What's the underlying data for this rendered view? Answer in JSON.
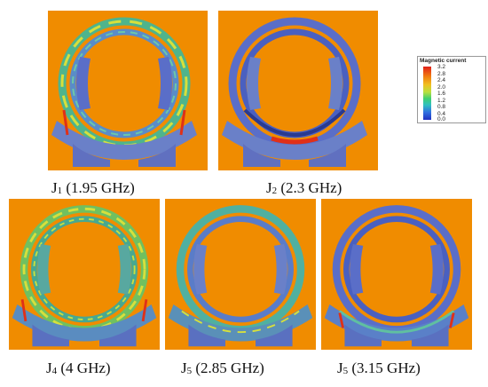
{
  "colors": {
    "background": "#f08c00",
    "ring_low": "#5a6ec8",
    "ring_mid": "#50b8a0",
    "ring_high": "#d8e040",
    "hot": "#e03018"
  },
  "panels": [
    {
      "id": "j1",
      "label_main": "J",
      "label_sub": "1",
      "label_rest": " (1.95 GHz)"
    },
    {
      "id": "j2",
      "label_main": "J",
      "label_sub": "2",
      "label_rest": " (2.3 GHz)"
    },
    {
      "id": "j4",
      "label_main": "J",
      "label_sub": "4",
      "label_rest": " (4 GHz)"
    },
    {
      "id": "j5a",
      "label_main": "J",
      "label_sub": "5",
      "label_rest": " (2.85 GHz)"
    },
    {
      "id": "j5b",
      "label_main": "J",
      "label_sub": "5",
      "label_rest": " (3.15 GHz)"
    }
  ],
  "legend": {
    "title": "Magnetic current",
    "ticks": [
      "3.2",
      "2.8",
      "2.4",
      "2.0",
      "1.6",
      "1.2",
      "0.8",
      "0.4",
      "0.0"
    ]
  }
}
